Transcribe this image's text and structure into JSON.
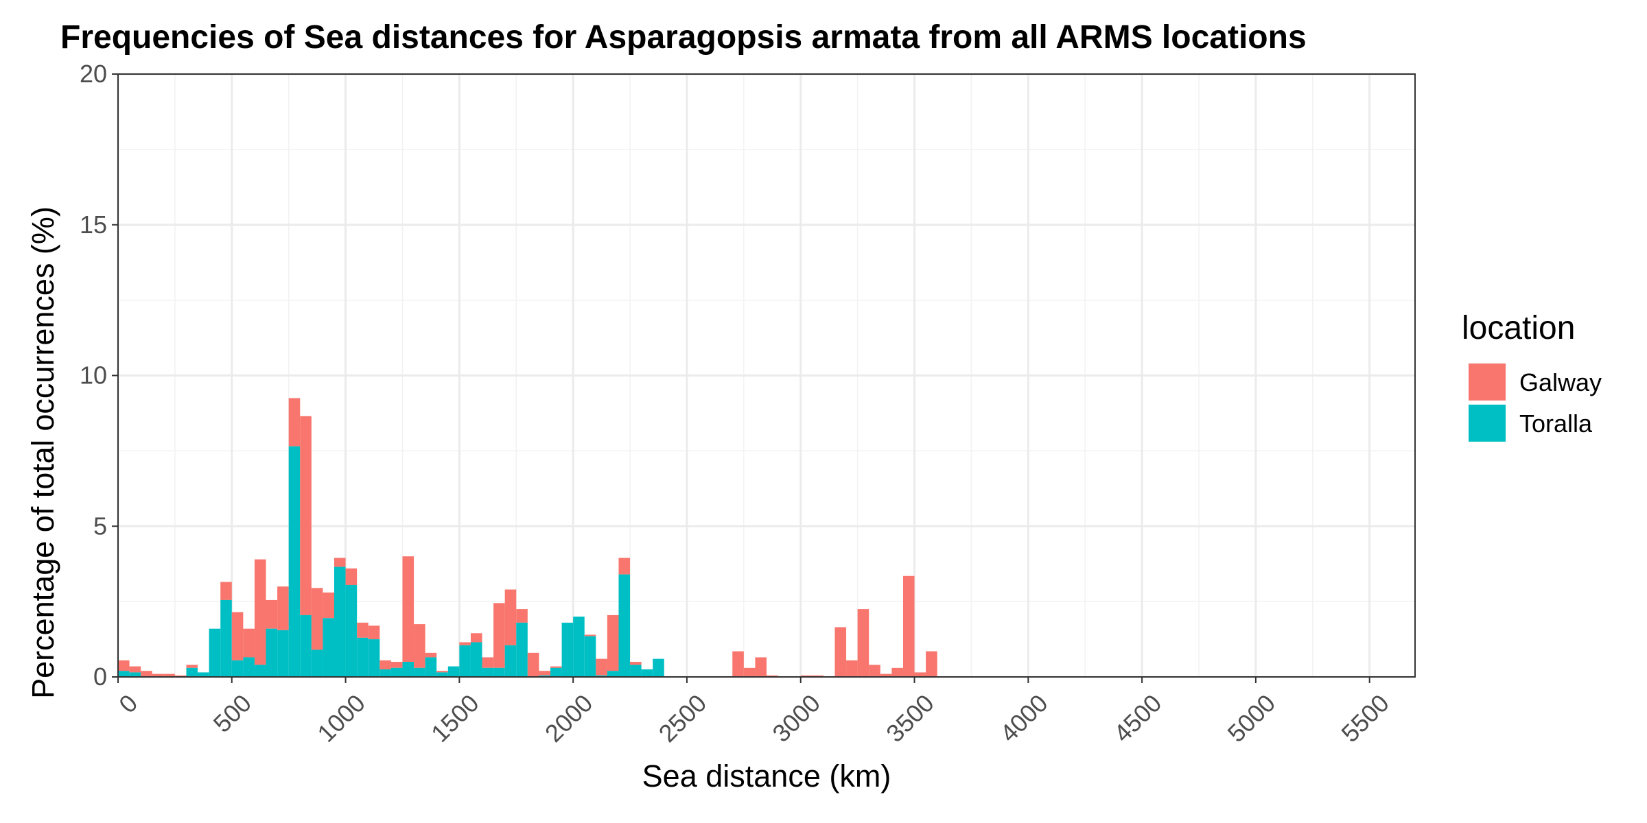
{
  "chart_data": {
    "type": "bar",
    "stacked": true,
    "title": "Frequencies of Sea distances for Asparagopsis armata from all ARMS locations",
    "xlabel": "Sea distance (km)",
    "ylabel": "Percentage of total occurrences (%)",
    "xlim": [
      0,
      5700
    ],
    "ylim": [
      0,
      20
    ],
    "x_ticks": [
      0,
      500,
      1000,
      1500,
      2000,
      2500,
      3000,
      3500,
      4000,
      4500,
      5000,
      5500
    ],
    "x_tick_labels": [
      "0",
      "500",
      "1000",
      "1500",
      "2000",
      "2500",
      "3000",
      "3500",
      "4000",
      "4500",
      "5000",
      "5500"
    ],
    "y_ticks": [
      0,
      5,
      10,
      15,
      20
    ],
    "y_tick_labels": [
      "0",
      "5",
      "10",
      "15",
      "20"
    ],
    "grid": true,
    "bin_width": 50,
    "bin_starts": [
      0,
      50,
      100,
      150,
      200,
      250,
      300,
      350,
      400,
      450,
      500,
      550,
      600,
      650,
      700,
      750,
      800,
      850,
      900,
      950,
      1000,
      1050,
      1100,
      1150,
      1200,
      1250,
      1300,
      1350,
      1400,
      1450,
      1500,
      1550,
      1600,
      1650,
      1700,
      1750,
      1800,
      1850,
      1900,
      1950,
      2000,
      2050,
      2100,
      2150,
      2200,
      2250,
      2300,
      2350,
      2400,
      2450,
      2500,
      2550,
      2600,
      2650,
      2700,
      2750,
      2800,
      2850,
      2900,
      2950,
      3000,
      3050,
      3100,
      3150,
      3200,
      3250,
      3300,
      3350,
      3400,
      3450,
      3500,
      3550
    ],
    "series": [
      {
        "name": "Galway",
        "color": "#F8766D",
        "values": [
          0.35,
          0.2,
          0.2,
          0.1,
          0.1,
          0.05,
          0.1,
          0.0,
          0.0,
          0.6,
          1.6,
          0.95,
          3.5,
          0.95,
          1.45,
          1.6,
          6.6,
          2.05,
          0.85,
          0.3,
          0.55,
          0.5,
          0.45,
          0.3,
          0.2,
          3.5,
          1.45,
          0.15,
          0.05,
          0.0,
          0.1,
          0.3,
          0.35,
          2.15,
          1.85,
          0.45,
          0.8,
          0.15,
          0.05,
          0.0,
          0.0,
          0.05,
          0.55,
          1.85,
          0.55,
          0.1,
          0.0,
          0.0,
          0.0,
          0.0,
          0.0,
          0.0,
          0.0,
          0.02,
          0.85,
          0.3,
          0.65,
          0.05,
          0.02,
          0.02,
          0.05,
          0.05,
          0.02,
          1.65,
          0.55,
          2.25,
          0.4,
          0.1,
          0.3,
          3.35,
          0.15,
          0.85
        ]
      },
      {
        "name": "Toralla",
        "color": "#00BFC4",
        "values": [
          0.2,
          0.15,
          0.0,
          0.0,
          0.0,
          0.0,
          0.3,
          0.15,
          1.6,
          2.55,
          0.55,
          0.65,
          0.4,
          1.6,
          1.55,
          7.65,
          2.05,
          0.9,
          1.95,
          3.65,
          3.05,
          1.3,
          1.25,
          0.25,
          0.3,
          0.5,
          0.3,
          0.65,
          0.15,
          0.35,
          1.05,
          1.15,
          0.3,
          0.3,
          1.05,
          1.8,
          0.0,
          0.05,
          0.3,
          1.8,
          2.0,
          1.35,
          0.05,
          0.2,
          3.4,
          0.4,
          0.25,
          0.6,
          0.0,
          0.0,
          0.0,
          0.0,
          0.0,
          0.0,
          0.0,
          0.0,
          0.0,
          0.0,
          0.0,
          0.0,
          0.0,
          0.0,
          0.0,
          0.0,
          0.0,
          0.0,
          0.0,
          0.0,
          0.0,
          0.0,
          0.0,
          0.0
        ]
      }
    ],
    "legend": {
      "title": "location",
      "position": "right",
      "items": [
        "Galway",
        "Toralla"
      ]
    }
  }
}
